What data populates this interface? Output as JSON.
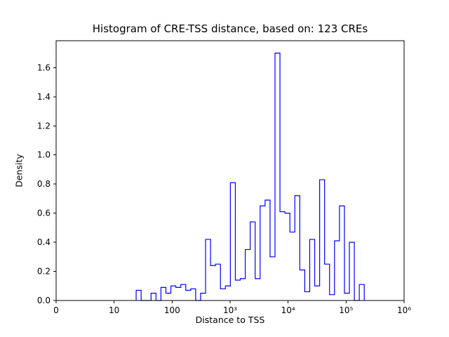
{
  "chart_data": {
    "type": "bar",
    "subtype": "step-histogram",
    "title": "Histogram of CRE-TSS distance, based on: 123 CREs",
    "xlabel": "Distance to TSS",
    "ylabel": "Density",
    "x_scale": "symlog",
    "xlim": [
      0,
      1000000
    ],
    "ylim": [
      0,
      1.785
    ],
    "grid": false,
    "legend": "none",
    "line_color": "#0000ff",
    "frame_color": "#000000",
    "x_ticks": [
      {
        "value": 0,
        "label": "0"
      },
      {
        "value": 10,
        "label": "10"
      },
      {
        "value": 100,
        "label": "100"
      },
      {
        "value": 1000,
        "label": "10³"
      },
      {
        "value": 10000,
        "label": "10⁴"
      },
      {
        "value": 100000,
        "label": "10⁵"
      },
      {
        "value": 1000000,
        "label": "10⁶"
      }
    ],
    "y_ticks": [
      {
        "value": 0.0,
        "label": "0.0"
      },
      {
        "value": 0.2,
        "label": "0.2"
      },
      {
        "value": 0.4,
        "label": "0.4"
      },
      {
        "value": 0.6,
        "label": "0.6"
      },
      {
        "value": 0.8,
        "label": "0.8"
      },
      {
        "value": 1.0,
        "label": "1.0"
      },
      {
        "value": 1.2,
        "label": "1.2"
      },
      {
        "value": 1.4,
        "label": "1.4"
      },
      {
        "value": 1.6,
        "label": "1.6"
      }
    ],
    "bins": {
      "log10_start": 1.38,
      "log10_width": 0.0855,
      "count": 46
    },
    "heights": [
      0.07,
      0,
      0,
      0.05,
      0,
      0.09,
      0.05,
      0.1,
      0.09,
      0.11,
      0.07,
      0.08,
      0,
      0.05,
      0.42,
      0.24,
      0.25,
      0.08,
      0.1,
      0.81,
      0.14,
      0.15,
      0.35,
      0.54,
      0.15,
      0.65,
      0.69,
      0.3,
      1.7,
      0.61,
      0.6,
      0.47,
      0.72,
      0.21,
      0.06,
      0.42,
      0.1,
      0.83,
      0.25,
      0.04,
      0.41,
      0.65,
      0.05,
      0.4,
      0,
      0.11
    ]
  }
}
